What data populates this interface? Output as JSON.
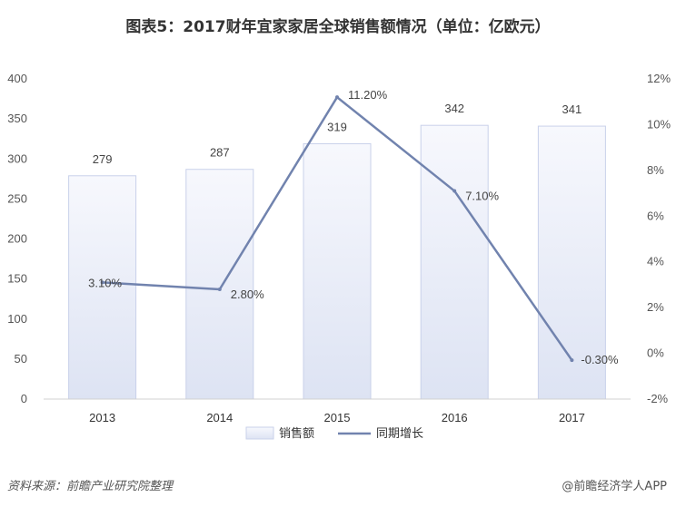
{
  "chart_data": {
    "type": "bar",
    "title": "图表5：2017财年宜家家居全球销售额情况（单位：亿欧元）",
    "categories": [
      "2013",
      "2014",
      "2015",
      "2016",
      "2017"
    ],
    "series": [
      {
        "name": "销售额",
        "type": "bar",
        "axis": "left",
        "values": [
          279,
          287,
          319,
          342,
          341
        ],
        "labels": [
          "279",
          "287",
          "319",
          "342",
          "341"
        ]
      },
      {
        "name": "同期增长",
        "type": "line",
        "axis": "right",
        "values": [
          3.1,
          2.8,
          11.2,
          7.1,
          -0.3
        ],
        "labels": [
          "3.10%",
          "2.80%",
          "11.20%",
          "7.10%",
          "-0.30%"
        ]
      }
    ],
    "y_left": {
      "ylim": [
        0,
        400
      ],
      "ticks": [
        "0",
        "50",
        "100",
        "150",
        "200",
        "250",
        "300",
        "350",
        "400"
      ]
    },
    "y_right": {
      "ylim": [
        -2,
        12
      ],
      "ticks": [
        "-2%",
        "0%",
        "2%",
        "4%",
        "6%",
        "8%",
        "10%",
        "12%"
      ]
    },
    "grid": false,
    "legend_position": "bottom"
  },
  "colors": {
    "bar_fill_top": "#f7f8fd",
    "bar_fill_bottom": "#dde3f3",
    "bar_stroke": "#c9d1ea",
    "line": "#7183ae",
    "axis": "#d0d0d0"
  },
  "footer": {
    "source": "资料来源：前瞻产业研究院整理",
    "brand": "@前瞻经济学人APP"
  }
}
